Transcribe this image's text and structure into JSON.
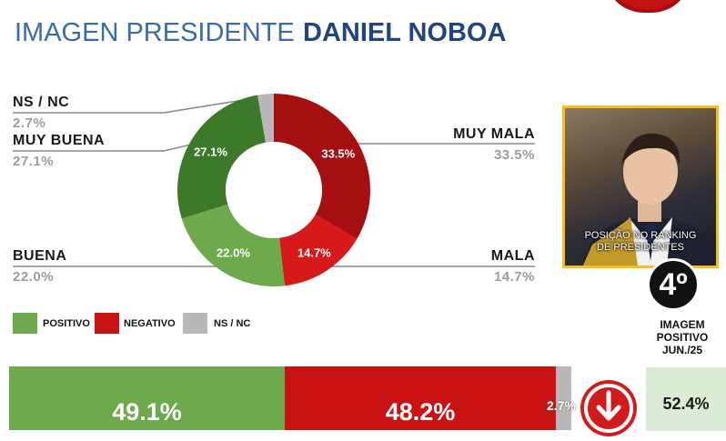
{
  "header": {
    "title_light": "IMAGEN PRESIDENTE",
    "title_bold": "DANIEL NOBOA"
  },
  "chart_data": {
    "type": "pie",
    "donut": true,
    "categories": [
      "MUY MALA",
      "MALA",
      "BUENA",
      "MUY BUENA",
      "NS / NC"
    ],
    "values": [
      33.5,
      14.7,
      22.0,
      27.1,
      2.7
    ],
    "value_labels": [
      "33.5%",
      "14.7%",
      "22.0%",
      "27.1%",
      ""
    ],
    "side_values": [
      "33.5%",
      "14.7%",
      "22.0%",
      "27.1%",
      "2.7%"
    ],
    "colors": [
      "#a50f12",
      "#d61a1a",
      "#6eaa4c",
      "#3c7a2a",
      "#b8b8b8"
    ],
    "legend": [
      {
        "label": "POSITIVO",
        "color": "#6eaa4c"
      },
      {
        "label": "NEGATIVO",
        "color": "#c91313"
      },
      {
        "label": "NS / NC",
        "color": "#b8b8b8"
      }
    ]
  },
  "summary_bar": {
    "segments": [
      {
        "label": "49.1%",
        "value": 49.1,
        "color": "#6eaa4c"
      },
      {
        "label": "48.2%",
        "value": 48.2,
        "color": "#c91313"
      },
      {
        "label": "2.7%",
        "value": 2.7,
        "color": "#b8b8b8"
      }
    ]
  },
  "side_panel": {
    "photo_caption_1": "POSIÇÃO NO RANKING",
    "photo_caption_2": "DE PRESIDENTES",
    "rank": "4º",
    "label_1": "IMAGEM",
    "label_2": "POSITIVO",
    "label_3": "JUN./25",
    "positive_value": "52.4%",
    "icons": {
      "trend": "arrow-down-icon"
    }
  }
}
